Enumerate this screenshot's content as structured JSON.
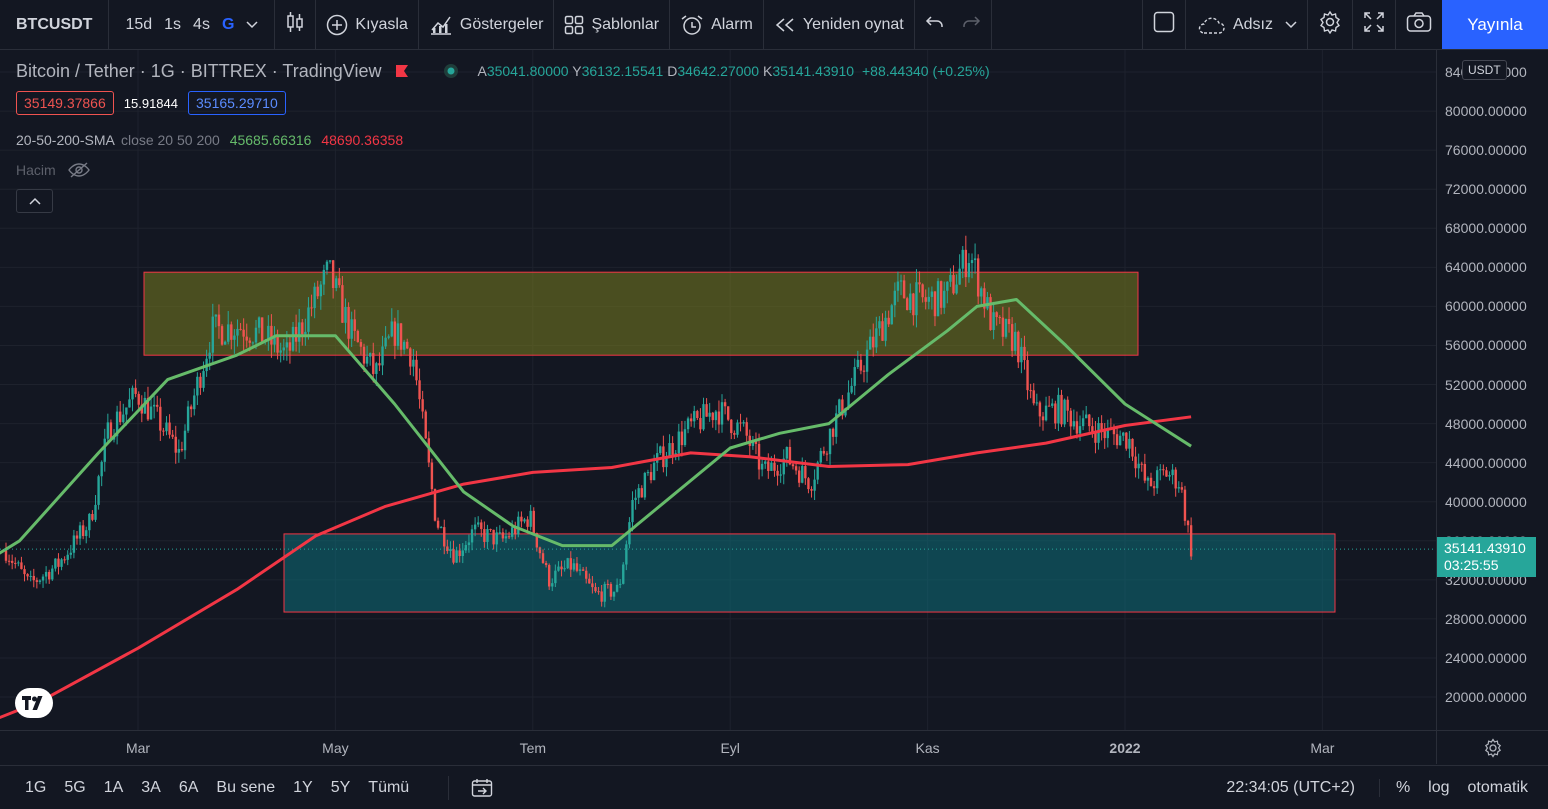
{
  "toolbar": {
    "symbol": "BTCUSDT",
    "timeframes": [
      "15d",
      "1s",
      "4s",
      "G"
    ],
    "active_timeframe": "G",
    "compare": "Kıyasla",
    "indicators": "Göstergeler",
    "templates": "Şablonlar",
    "alert": "Alarm",
    "replay": "Yeniden oynat",
    "layout_name": "Adsız",
    "publish": "Yayınla"
  },
  "legend": {
    "title": "Bitcoin / Tether · 1G · BITTREX · TradingView",
    "ohlc": {
      "A": "35041.80000",
      "Y": "36132.15541",
      "D": "34642.27000",
      "K": "35141.43910",
      "change": "+88.44340 (+0.25%)"
    },
    "bid": "35149.37866",
    "spread": "15.91844",
    "ask": "35165.29710",
    "sma_name": "20-50-200-SMA",
    "sma_params": "close 20 50 200",
    "sma_val1": "45685.66316",
    "sma_val2": "48690.36358",
    "volume_label": "Hacim"
  },
  "price_axis": {
    "currency": "USDT",
    "ticks": [
      "84000.00000",
      "80000.00000",
      "76000.00000",
      "72000.00000",
      "68000.00000",
      "64000.00000",
      "60000.00000",
      "56000.00000",
      "52000.00000",
      "48000.00000",
      "44000.00000",
      "40000.00000",
      "36000.00000",
      "32000.00000",
      "28000.00000",
      "24000.00000",
      "20000.00000"
    ],
    "tick_values": [
      84000,
      80000,
      76000,
      72000,
      68000,
      64000,
      60000,
      56000,
      52000,
      48000,
      44000,
      40000,
      36000,
      32000,
      28000,
      24000,
      20000
    ],
    "last_price": "35141.43910",
    "countdown": "03:25:55"
  },
  "time_axis": {
    "labels": [
      "Mar",
      "May",
      "Tem",
      "Eyl",
      "Kas",
      "2022",
      "Mar"
    ]
  },
  "bottombar": {
    "ranges": [
      "1G",
      "5G",
      "1A",
      "3A",
      "6A",
      "Bu sene",
      "1Y",
      "5Y",
      "Tümü"
    ],
    "clock": "22:34:05 (UTC+2)",
    "percent": "%",
    "log": "log",
    "auto": "otomatik"
  },
  "colors": {
    "up": "#26a69a",
    "down": "#ef5350",
    "sma50": "#66bb6a",
    "sma200": "#f23645",
    "accent": "#2962ff",
    "zone_top": "#787b1f",
    "zone_bottom": "#0d6e78"
  },
  "chart_data": {
    "type": "candlestick",
    "ylim": [
      16000,
      86000
    ],
    "last_price": 35141.4391,
    "zones": [
      {
        "from_month": "Şub",
        "to_month": "Ara",
        "low": 55000,
        "high": 63500
      },
      {
        "from_month": "Nis",
        "to_month": "Şub",
        "low": 28700,
        "high": 36700
      }
    ],
    "close_path_monthly": [
      {
        "m": "Oca",
        "v": 33000
      },
      {
        "m": "Şub",
        "v": 45000
      },
      {
        "m": "Mar",
        "v": 58000
      },
      {
        "m": "Nis",
        "v": 57500
      },
      {
        "m": "May",
        "v": 37000
      },
      {
        "m": "Haz",
        "v": 35000
      },
      {
        "m": "Tem",
        "v": 41500
      },
      {
        "m": "Ağu",
        "v": 47000
      },
      {
        "m": "Eyl",
        "v": 43800
      },
      {
        "m": "Eki",
        "v": 61300
      },
      {
        "m": "Kas",
        "v": 57000
      },
      {
        "m": "Ara",
        "v": 46300
      },
      {
        "m": "Oca",
        "v": 35141
      }
    ]
  }
}
